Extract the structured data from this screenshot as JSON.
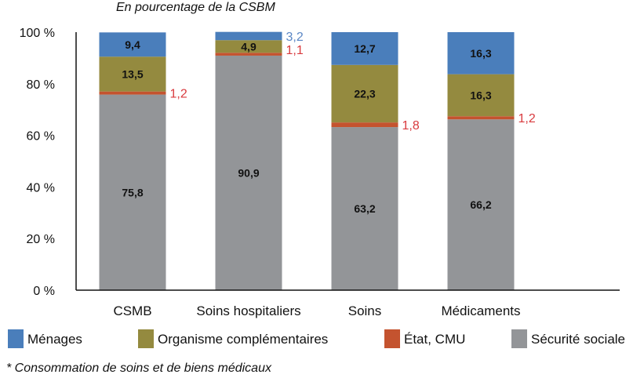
{
  "chart_data": {
    "type": "bar",
    "stacked": true,
    "title": "En pourcentage de la CSBM",
    "footnote": "* Consommation de soins et de biens médicaux",
    "xlabel": "",
    "ylabel": "",
    "ylim": [
      0,
      100
    ],
    "yticks": [
      "0 %",
      "20 %",
      "40 %",
      "60 %",
      "80 %",
      "100 %"
    ],
    "ytick_values": [
      0,
      20,
      40,
      60,
      80,
      100
    ],
    "grid": false,
    "legend_position": "bottom",
    "categories": [
      "CSMB",
      "Soins hospitaliers",
      "Soins",
      "Médicaments"
    ],
    "series": [
      {
        "name": "Sécurité sociale",
        "color": "#939598",
        "values": [
          75.8,
          90.9,
          63.2,
          66.2
        ],
        "labels": [
          "75,8",
          "90,9",
          "63,2",
          "66,2"
        ],
        "label_outside": [
          false,
          false,
          false,
          false
        ]
      },
      {
        "name": "État, CMU",
        "color": "#c4532f",
        "values": [
          1.2,
          1.1,
          1.8,
          1.2
        ],
        "labels": [
          "1,2",
          "1,1",
          "1,8",
          "1,2"
        ],
        "label_outside": [
          true,
          true,
          true,
          true
        ],
        "outside_label_color": "#d93a3e"
      },
      {
        "name": "Organisme complémentaires",
        "color": "#948a3f",
        "values": [
          13.5,
          4.9,
          22.3,
          16.3
        ],
        "labels": [
          "13,5",
          "4,9",
          "22,3",
          "16,3"
        ],
        "label_outside": [
          false,
          false,
          false,
          false
        ]
      },
      {
        "name": "Ménages",
        "color": "#4a7ebb",
        "values": [
          9.4,
          3.2,
          12.7,
          16.3
        ],
        "labels": [
          "9,4",
          "3,2",
          "12,7",
          "16,3"
        ],
        "label_outside": [
          false,
          true,
          false,
          false
        ],
        "outside_label_color": "#5b87c5"
      }
    ],
    "legend_order": [
      "Ménages",
      "Organisme complémentaires",
      "État, CMU",
      "Sécurité sociale"
    ]
  }
}
